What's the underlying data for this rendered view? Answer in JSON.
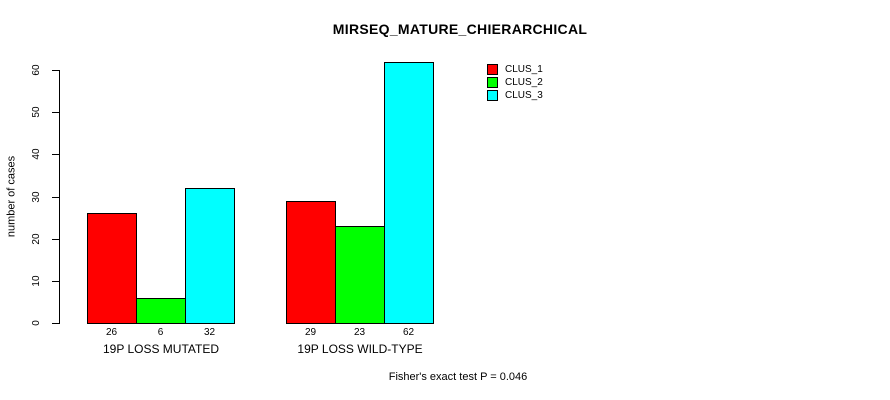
{
  "chart_data": {
    "type": "bar",
    "title": "MIRSEQ_MATURE_CHIERARCHICAL",
    "xlabel": "",
    "ylabel": "number of cases",
    "categories": [
      "19P LOSS MUTATED",
      "19P LOSS WILD-TYPE"
    ],
    "series": [
      {
        "name": "CLUS_1",
        "color": "#ff0000",
        "values": [
          26,
          29
        ]
      },
      {
        "name": "CLUS_2",
        "color": "#00ff00",
        "values": [
          6,
          23
        ]
      },
      {
        "name": "CLUS_3",
        "color": "#00ffff",
        "values": [
          32,
          62
        ]
      }
    ],
    "bar_value_labels": [
      [
        "26",
        "6",
        "32"
      ],
      [
        "29",
        "23",
        "62"
      ]
    ],
    "yticks": [
      0,
      10,
      20,
      30,
      40,
      50,
      60
    ],
    "ylim": [
      0,
      62
    ],
    "grid": false,
    "legend_position": "top-right",
    "annotation": "Fisher's exact test P = 0.046",
    "colors": {
      "axis": "#000000",
      "bar_border": "#000000",
      "background": "#ffffff",
      "text": "#000000"
    }
  }
}
